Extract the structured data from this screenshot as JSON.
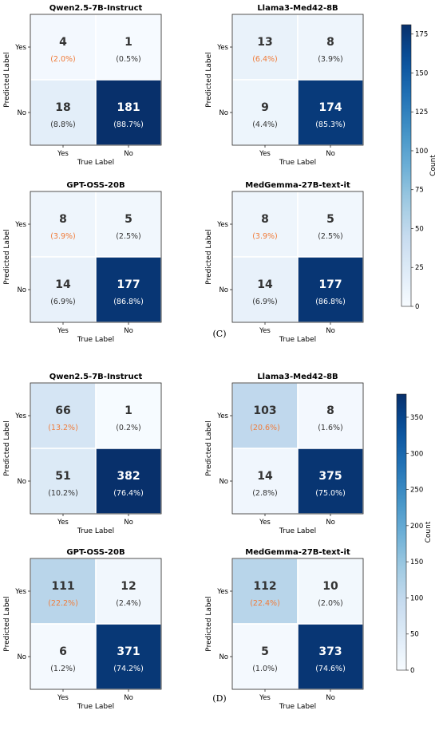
{
  "groups": [
    {
      "panel_label": "(C)",
      "colorbar": {
        "label": "Count",
        "max": 181,
        "ticks": [
          0,
          25,
          50,
          75,
          100,
          125,
          150,
          175
        ]
      },
      "matrices": [
        {
          "title": "Qwen2.5-7B-Instruct",
          "cells": [
            [
              4,
              1
            ],
            [
              18,
              181
            ]
          ],
          "percents": [
            [
              "(2.0%)",
              "(0.5%)"
            ],
            [
              "(8.8%)",
              "(88.7%)"
            ]
          ]
        },
        {
          "title": "Llama3-Med42-8B",
          "cells": [
            [
              13,
              8
            ],
            [
              9,
              174
            ]
          ],
          "percents": [
            [
              "(6.4%)",
              "(3.9%)"
            ],
            [
              "(4.4%)",
              "(85.3%)"
            ]
          ]
        },
        {
          "title": "GPT-OSS-20B",
          "cells": [
            [
              8,
              5
            ],
            [
              14,
              177
            ]
          ],
          "percents": [
            [
              "(3.9%)",
              "(2.5%)"
            ],
            [
              "(6.9%)",
              "(86.8%)"
            ]
          ]
        },
        {
          "title": "MedGemma-27B-text-it",
          "cells": [
            [
              8,
              5
            ],
            [
              14,
              177
            ]
          ],
          "percents": [
            [
              "(3.9%)",
              "(2.5%)"
            ],
            [
              "(6.9%)",
              "(86.8%)"
            ]
          ]
        }
      ]
    },
    {
      "panel_label": "(D)",
      "colorbar": {
        "label": "Count",
        "max": 382,
        "ticks": [
          0,
          50,
          100,
          150,
          200,
          250,
          300,
          350
        ]
      },
      "matrices": [
        {
          "title": "Qwen2.5-7B-Instruct",
          "cells": [
            [
              66,
              1
            ],
            [
              51,
              382
            ]
          ],
          "percents": [
            [
              "(13.2%)",
              "(0.2%)"
            ],
            [
              "(10.2%)",
              "(76.4%)"
            ]
          ]
        },
        {
          "title": "Llama3-Med42-8B",
          "cells": [
            [
              103,
              8
            ],
            [
              14,
              375
            ]
          ],
          "percents": [
            [
              "(20.6%)",
              "(1.6%)"
            ],
            [
              "(2.8%)",
              "(75.0%)"
            ]
          ]
        },
        {
          "title": "GPT-OSS-20B",
          "cells": [
            [
              111,
              12
            ],
            [
              6,
              371
            ]
          ],
          "percents": [
            [
              "(22.2%)",
              "(2.4%)"
            ],
            [
              "(1.2%)",
              "(74.2%)"
            ]
          ]
        },
        {
          "title": "MedGemma-27B-text-it",
          "cells": [
            [
              112,
              10
            ],
            [
              5,
              373
            ]
          ],
          "percents": [
            [
              "(22.4%)",
              "(2.0%)"
            ],
            [
              "(1.0%)",
              "(74.6%)"
            ]
          ]
        }
      ]
    }
  ],
  "axis": {
    "xlabel": "True Label",
    "ylabel": "Predicted Label",
    "x_ticks": [
      "Yes",
      "No"
    ],
    "y_ticks": [
      "Yes",
      "No"
    ]
  },
  "chart_data": [
    {
      "type": "heatmap",
      "title": "Qwen2.5-7B-Instruct",
      "x": [
        "Yes",
        "No"
      ],
      "y": [
        "Yes",
        "No"
      ],
      "values": [
        [
          4,
          1
        ],
        [
          18,
          181
        ]
      ],
      "xlabel": "True Label",
      "ylabel": "Predicted Label"
    },
    {
      "type": "heatmap",
      "title": "Llama3-Med42-8B",
      "x": [
        "Yes",
        "No"
      ],
      "y": [
        "Yes",
        "No"
      ],
      "values": [
        [
          13,
          8
        ],
        [
          9,
          174
        ]
      ],
      "xlabel": "True Label",
      "ylabel": "Predicted Label"
    },
    {
      "type": "heatmap",
      "title": "GPT-OSS-20B",
      "x": [
        "Yes",
        "No"
      ],
      "y": [
        "Yes",
        "No"
      ],
      "values": [
        [
          8,
          5
        ],
        [
          14,
          177
        ]
      ],
      "xlabel": "True Label",
      "ylabel": "Predicted Label"
    },
    {
      "type": "heatmap",
      "title": "MedGemma-27B-text-it",
      "x": [
        "Yes",
        "No"
      ],
      "y": [
        "Yes",
        "No"
      ],
      "values": [
        [
          8,
          5
        ],
        [
          14,
          177
        ]
      ],
      "xlabel": "True Label",
      "ylabel": "Predicted Label"
    },
    {
      "type": "heatmap",
      "title": "Qwen2.5-7B-Instruct",
      "x": [
        "Yes",
        "No"
      ],
      "y": [
        "Yes",
        "No"
      ],
      "values": [
        [
          66,
          1
        ],
        [
          51,
          382
        ]
      ],
      "xlabel": "True Label",
      "ylabel": "Predicted Label"
    },
    {
      "type": "heatmap",
      "title": "Llama3-Med42-8B",
      "x": [
        "Yes",
        "No"
      ],
      "y": [
        "Yes",
        "No"
      ],
      "values": [
        [
          103,
          8
        ],
        [
          14,
          375
        ]
      ],
      "xlabel": "True Label",
      "ylabel": "Predicted Label"
    },
    {
      "type": "heatmap",
      "title": "GPT-OSS-20B",
      "x": [
        "Yes",
        "No"
      ],
      "y": [
        "Yes",
        "No"
      ],
      "values": [
        [
          111,
          12
        ],
        [
          6,
          371
        ]
      ],
      "xlabel": "True Label",
      "ylabel": "Predicted Label"
    },
    {
      "type": "heatmap",
      "title": "MedGemma-27B-text-it",
      "x": [
        "Yes",
        "No"
      ],
      "y": [
        "Yes",
        "No"
      ],
      "values": [
        [
          112,
          10
        ],
        [
          5,
          373
        ]
      ],
      "xlabel": "True Label",
      "ylabel": "Predicted Label"
    }
  ],
  "colors": {
    "low": "#f7fbff",
    "high": "#08306b",
    "highlight_text": "#f07c3a",
    "dark_text": "#333333",
    "light_text": "#ffffff"
  }
}
